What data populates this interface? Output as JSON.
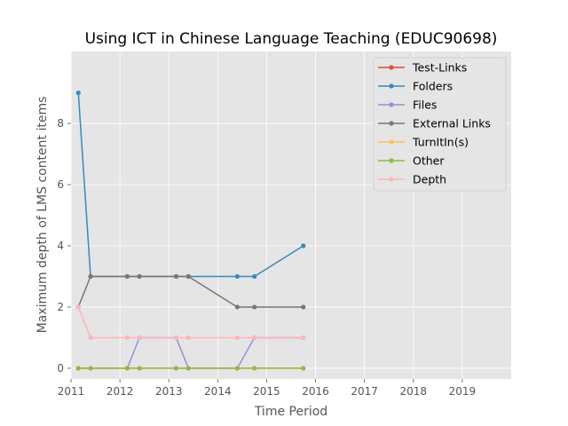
{
  "chart_data": {
    "type": "line",
    "title": "Using ICT in Chinese Language Teaching (EDUC90698)",
    "xlabel": "Time Period",
    "ylabel": "Maximum depth of LMS content items",
    "xlim": [
      2011,
      2020
    ],
    "ylim": [
      -0.35,
      10.35
    ],
    "xticks": [
      2011,
      2012,
      2013,
      2014,
      2015,
      2016,
      2017,
      2018,
      2019
    ],
    "yticks": [
      0,
      2,
      4,
      6,
      8
    ],
    "grid": true,
    "legend_position": "top-right",
    "x": [
      2011.15,
      2011.4,
      2012.15,
      2012.4,
      2013.15,
      2013.4,
      2014.4,
      2014.75,
      2015.75
    ],
    "series": [
      {
        "name": "Test-Links",
        "color": "#E24A33",
        "values": [
          null,
          null,
          null,
          null,
          null,
          null,
          null,
          null,
          null
        ]
      },
      {
        "name": "Folders",
        "color": "#348ABD",
        "values": [
          9,
          3,
          3,
          3,
          3,
          3,
          3,
          3,
          4
        ]
      },
      {
        "name": "Files",
        "color": "#988ED5",
        "values": [
          0,
          0,
          0,
          1,
          1,
          0,
          0,
          1,
          1
        ]
      },
      {
        "name": "External Links",
        "color": "#777777",
        "values": [
          2,
          3,
          3,
          3,
          3,
          3,
          2,
          2,
          2
        ]
      },
      {
        "name": "TurnItIn(s)",
        "color": "#FBC15E",
        "values": [
          0,
          0,
          0,
          0,
          0,
          0,
          0,
          0,
          0
        ]
      },
      {
        "name": "Other",
        "color": "#8EBA42",
        "values": [
          0,
          0,
          0,
          0,
          0,
          0,
          0,
          0,
          0
        ]
      },
      {
        "name": "Depth",
        "color": "#FFB5B8",
        "values": [
          2,
          1,
          1,
          1,
          1,
          1,
          1,
          1,
          1
        ]
      }
    ]
  },
  "style": {
    "plot_background": "#E5E5E5",
    "grid_color": "#FFFFFF",
    "tick_color": "#555555"
  }
}
